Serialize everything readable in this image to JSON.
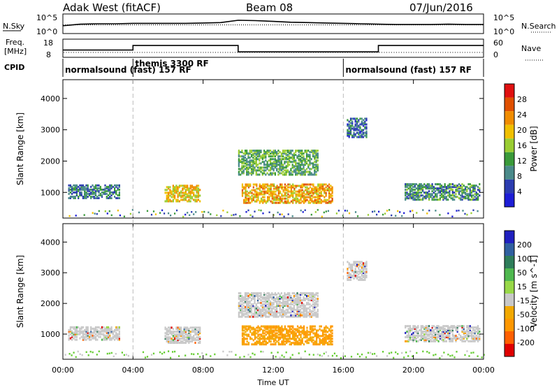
{
  "header": {
    "radar_title": "Adak West (fitACF)",
    "beam": "Beam 08",
    "date": "07/Jun/2016"
  },
  "labels": {
    "nsky": "N.Sky",
    "nsearch": "N.Search",
    "freq_line1": "Freq.",
    "freq_line2": "[MHz]",
    "nave": "Nave",
    "cpid": "CPID",
    "noise_ticks_left": [
      "10^5",
      "10^0"
    ],
    "noise_ticks_right": [
      "10^5",
      "10^0"
    ],
    "freq_ticks": [
      "18",
      "8"
    ],
    "nave_ticks": [
      "60",
      "0"
    ],
    "power_ylabel": "Slant Range [km]",
    "vel_ylabel": "Slant Range [km]",
    "xlabel": "Time UT"
  },
  "cpid_segments": [
    {
      "label": "normalsound (fast) 157 RF",
      "start_h": 0
    },
    {
      "label": "themis 3300 RF",
      "start_h": 4
    },
    {
      "label": "normalsound (fast) 157 RF",
      "start_h": 16
    }
  ],
  "colors": {
    "power_scale": [
      "#1d1dd6",
      "#2c3db0",
      "#4a8a8a",
      "#3a9a3a",
      "#9acd32",
      "#f0c000",
      "#f08c00",
      "#e05000",
      "#e01010"
    ],
    "velocity_scale": [
      "#e00000",
      "#ff6000",
      "#ff9800",
      "#f2a900",
      "#c8c8c8",
      "#98d848",
      "#4fb84f",
      "#2e7d5a",
      "#3060a0",
      "#2020c0"
    ],
    "dashed_lines": "#bbbbbb"
  },
  "colorbars": {
    "power": {
      "label": "Power [dB]",
      "ticks": [
        "28",
        "24",
        "20",
        "16",
        "12",
        "8",
        "4"
      ]
    },
    "velocity": {
      "label": "Velocity [m s^-1]",
      "ticks": [
        "200",
        "100",
        "50",
        "15",
        "-15",
        "-50",
        "-100",
        "-200"
      ]
    }
  },
  "chart_data": [
    {
      "type": "line",
      "name": "noise",
      "x": [
        0,
        1,
        2,
        3,
        4,
        5,
        6,
        7,
        8,
        9,
        10,
        11,
        12,
        13,
        14,
        15,
        16,
        17,
        18,
        19,
        20,
        21,
        22,
        23,
        24
      ],
      "series": [
        {
          "name": "N.Sky",
          "values": [
            2.0,
            2.4,
            2.5,
            2.5,
            2.6,
            2.6,
            2.6,
            2.6,
            2.7,
            2.8,
            3.4,
            3.3,
            3.1,
            2.9,
            2.8,
            2.7,
            2.6,
            2.5,
            2.4,
            2.3,
            2.3,
            2.3,
            2.4,
            2.3,
            2.3
          ]
        }
      ],
      "ylim": [
        0,
        5
      ]
    },
    {
      "type": "line",
      "name": "frequency",
      "xlim": [
        0,
        24
      ],
      "ylim": [
        8,
        18
      ],
      "series": [
        {
          "name": "Freq.",
          "x": [
            0,
            4,
            4,
            10,
            10,
            18,
            18,
            24
          ],
          "values": [
            12.0,
            12.0,
            14.5,
            14.5,
            11.0,
            11.0,
            14.5,
            14.5
          ]
        }
      ]
    },
    {
      "type": "heatmap",
      "name": "power",
      "xlabel": "Time UT",
      "ylabel": "Slant Range [km]",
      "xlim": [
        0,
        24
      ],
      "ylim": [
        180,
        4600
      ],
      "x_ticks": [
        "00:00",
        "04:00",
        "08:00",
        "12:00",
        "16:00",
        "20:00",
        "00:00"
      ],
      "y_ticks": [
        1000,
        2000,
        3000,
        4000
      ],
      "value_label": "Power [dB]",
      "value_range": [
        0,
        32
      ],
      "regions": [
        {
          "t0": 0.3,
          "t1": 3.2,
          "r0": 850,
          "r1": 1300,
          "level": 8
        },
        {
          "t0": 5.8,
          "t1": 7.8,
          "r0": 750,
          "r1": 1250,
          "level": 20
        },
        {
          "t0": 10.2,
          "t1": 15.4,
          "r0": 700,
          "r1": 1300,
          "level": 22
        },
        {
          "t0": 10.0,
          "t1": 14.5,
          "r0": 1600,
          "r1": 2400,
          "level": 12
        },
        {
          "t0": 16.2,
          "t1": 17.3,
          "r0": 2800,
          "r1": 3400,
          "level": 6
        },
        {
          "t0": 19.5,
          "t1": 23.8,
          "r0": 800,
          "r1": 1300,
          "level": 10
        }
      ]
    },
    {
      "type": "heatmap",
      "name": "velocity",
      "xlabel": "Time UT",
      "ylabel": "Slant Range [km]",
      "xlim": [
        0,
        24
      ],
      "ylim": [
        180,
        4600
      ],
      "x_ticks": [
        "00:00",
        "04:00",
        "08:00",
        "12:00",
        "16:00",
        "20:00",
        "00:00"
      ],
      "y_ticks": [
        1000,
        2000,
        3000,
        4000
      ],
      "value_label": "Velocity [m s^-1]",
      "value_range": [
        -200,
        200
      ],
      "regions": [
        {
          "t0": 0.3,
          "t1": 3.2,
          "r0": 850,
          "r1": 1300,
          "level": 0
        },
        {
          "t0": 5.8,
          "t1": 7.8,
          "r0": 750,
          "r1": 1250,
          "level": 0
        },
        {
          "t0": 10.2,
          "t1": 15.4,
          "r0": 700,
          "r1": 1300,
          "level": -40
        },
        {
          "t0": 10.0,
          "t1": 14.5,
          "r0": 1600,
          "r1": 2400,
          "level": 0
        },
        {
          "t0": 16.2,
          "t1": 17.3,
          "r0": 2800,
          "r1": 3400,
          "level": 0
        },
        {
          "t0": 19.5,
          "t1": 23.8,
          "r0": 800,
          "r1": 1300,
          "level": 0
        }
      ]
    }
  ]
}
